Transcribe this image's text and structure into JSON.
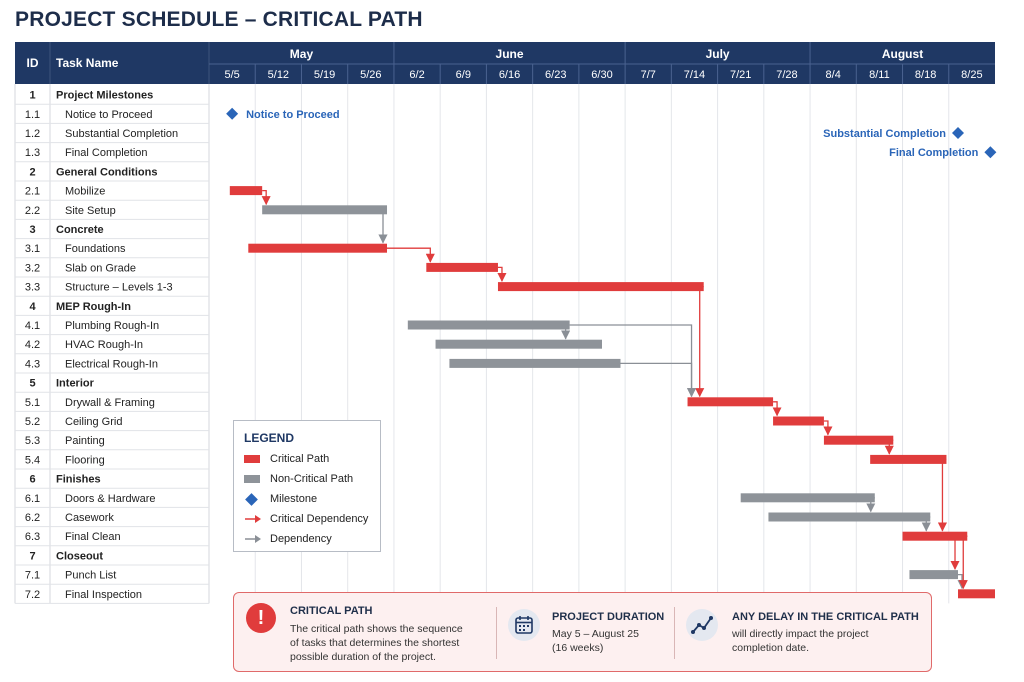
{
  "title": "PROJECT SCHEDULE – CRITICAL PATH",
  "chart_data": {
    "type": "gantt",
    "columns": {
      "id": "ID",
      "task": "Task Name"
    },
    "months": [
      {
        "label": "May",
        "start": 0,
        "end": 4
      },
      {
        "label": "June",
        "start": 4,
        "end": 9
      },
      {
        "label": "July",
        "start": 9,
        "end": 13
      },
      {
        "label": "August",
        "start": 13,
        "end": 17
      }
    ],
    "weeks": [
      "5/5",
      "5/12",
      "5/19",
      "5/26",
      "6/2",
      "6/9",
      "6/16",
      "6/23",
      "6/30",
      "7/7",
      "7/14",
      "7/21",
      "7/28",
      "8/4",
      "8/11",
      "8/18",
      "8/25"
    ],
    "rows": [
      {
        "id": "1",
        "name": "Project Milestones",
        "group": true
      },
      {
        "id": "1.1",
        "name": "Notice to Proceed",
        "milestone": 0.5,
        "label": "Notice to Proceed",
        "label_side": "right"
      },
      {
        "id": "1.2",
        "name": "Substantial Completion",
        "milestone": 16.2,
        "label": "Substantial Completion",
        "label_side": "left"
      },
      {
        "id": "1.3",
        "name": "Final Completion",
        "milestone": 16.9,
        "label": "Final Completion",
        "label_side": "left"
      },
      {
        "id": "2",
        "name": "General Conditions",
        "group": true
      },
      {
        "id": "2.1",
        "name": "Mobilize",
        "start": 0.45,
        "end": 1.15,
        "critical": true
      },
      {
        "id": "2.2",
        "name": "Site Setup",
        "start": 1.15,
        "end": 3.85,
        "critical": false
      },
      {
        "id": "3",
        "name": "Concrete",
        "group": true
      },
      {
        "id": "3.1",
        "name": "Foundations",
        "start": 0.85,
        "end": 3.85,
        "critical": true
      },
      {
        "id": "3.2",
        "name": "Slab on Grade",
        "start": 4.7,
        "end": 6.25,
        "critical": true
      },
      {
        "id": "3.3",
        "name": "Structure – Levels 1-3",
        "start": 6.25,
        "end": 10.7,
        "critical": true
      },
      {
        "id": "4",
        "name": "MEP Rough-In",
        "group": true
      },
      {
        "id": "4.1",
        "name": "Plumbing Rough-In",
        "start": 4.3,
        "end": 7.8,
        "critical": false
      },
      {
        "id": "4.2",
        "name": "HVAC Rough-In",
        "start": 4.9,
        "end": 8.5,
        "critical": false
      },
      {
        "id": "4.3",
        "name": "Electrical Rough-In",
        "start": 5.2,
        "end": 8.9,
        "critical": false
      },
      {
        "id": "5",
        "name": "Interior",
        "group": true
      },
      {
        "id": "5.1",
        "name": "Drywall & Framing",
        "start": 10.35,
        "end": 12.2,
        "critical": true
      },
      {
        "id": "5.2",
        "name": "Ceiling Grid",
        "start": 12.2,
        "end": 13.3,
        "critical": true
      },
      {
        "id": "5.3",
        "name": "Painting",
        "start": 13.3,
        "end": 14.8,
        "critical": true
      },
      {
        "id": "5.4",
        "name": "Flooring",
        "start": 14.3,
        "end": 15.95,
        "critical": true
      },
      {
        "id": "6",
        "name": "Finishes",
        "group": true
      },
      {
        "id": "6.1",
        "name": "Doors & Hardware",
        "start": 11.5,
        "end": 14.4,
        "critical": false
      },
      {
        "id": "6.2",
        "name": "Casework",
        "start": 12.1,
        "end": 15.6,
        "critical": false
      },
      {
        "id": "6.3",
        "name": "Final Clean",
        "start": 15.0,
        "end": 16.4,
        "critical": true
      },
      {
        "id": "7",
        "name": "Closeout",
        "group": true
      },
      {
        "id": "7.1",
        "name": "Punch List",
        "start": 15.15,
        "end": 16.2,
        "critical": false
      },
      {
        "id": "7.2",
        "name": "Final Inspection",
        "start": 16.2,
        "end": 17.0,
        "critical": true
      }
    ],
    "dependencies": [
      {
        "from": "2.1",
        "to": "2.2",
        "critical": true
      },
      {
        "from": "2.2",
        "to": "3.1",
        "critical": false
      },
      {
        "from": "3.1",
        "to": "3.2",
        "critical": true
      },
      {
        "from": "3.2",
        "to": "3.3",
        "critical": true
      },
      {
        "from": "3.3",
        "to": "5.1",
        "critical": true
      },
      {
        "from": "4.1",
        "to": "4.2",
        "critical": false
      },
      {
        "from": "4.1",
        "to": "5.1",
        "critical": false
      },
      {
        "from": "4.3",
        "to": "5.1",
        "critical": false
      },
      {
        "from": "5.1",
        "to": "5.2",
        "critical": true
      },
      {
        "from": "5.2",
        "to": "5.3",
        "critical": true
      },
      {
        "from": "5.3",
        "to": "5.4",
        "critical": true
      },
      {
        "from": "5.4",
        "to": "6.3",
        "critical": true
      },
      {
        "from": "6.1",
        "to": "6.2",
        "critical": false
      },
      {
        "from": "6.2",
        "to": "6.3",
        "critical": false
      },
      {
        "from": "6.3",
        "to": "7.1",
        "critical": true
      },
      {
        "from": "7.1",
        "to": "7.2",
        "critical": false
      },
      {
        "from": "6.3",
        "to": "7.2",
        "critical": true
      }
    ],
    "legend": {
      "title": "LEGEND",
      "items": [
        "Critical Path",
        "Non-Critical Path",
        "Milestone",
        "Critical Dependency",
        "Dependency"
      ]
    }
  },
  "footer": {
    "critical": {
      "title": "CRITICAL PATH",
      "lines": [
        "The critical path shows the sequence",
        "of tasks that determines the shortest",
        "possible duration of the project."
      ]
    },
    "duration": {
      "title": "PROJECT DURATION",
      "lines": [
        "May 5 – August 25",
        "(16 weeks)"
      ]
    },
    "delay": {
      "title": "ANY DELAY IN THE CRITICAL PATH",
      "lines": [
        "will directly impact the project",
        "completion date."
      ]
    }
  },
  "colors": {
    "header": "#1f3864",
    "critical": "#e03c3c",
    "noncritical": "#8e9399",
    "milestone": "#2a65b8"
  }
}
